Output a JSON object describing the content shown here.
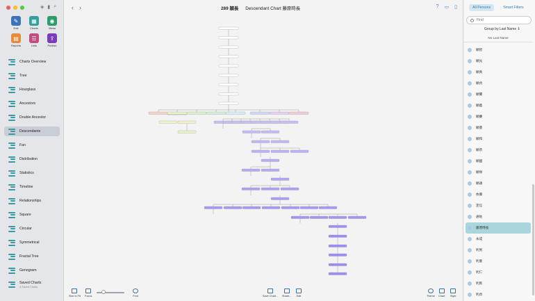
{
  "quick_actions": [
    {
      "label": "Edit",
      "color": "#3b73b9",
      "icon": "pencil-icon",
      "glyph": "✎"
    },
    {
      "label": "Charts",
      "color": "#33a09b",
      "icon": "charts-icon",
      "glyph": "▦"
    },
    {
      "label": "Views",
      "color": "#2a9d6a",
      "icon": "eye-icon",
      "glyph": "◉"
    },
    {
      "label": "Reports",
      "color": "#e68a3a",
      "icon": "reports-icon",
      "glyph": "▤"
    },
    {
      "label": "Lists",
      "color": "#c24c7c",
      "icon": "lists-icon",
      "glyph": "☰"
    },
    {
      "label": "Publish",
      "color": "#7a3fb8",
      "icon": "publish-icon",
      "glyph": "⇪"
    }
  ],
  "nav": [
    {
      "label": "Charts Overview"
    },
    {
      "label": "Tree"
    },
    {
      "label": "Hourglass"
    },
    {
      "label": "Ancestors"
    },
    {
      "label": "Double Ancestor"
    },
    {
      "label": "Descendants",
      "selected": true
    },
    {
      "label": "Fan"
    },
    {
      "label": "Distribution"
    },
    {
      "label": "Statistics"
    },
    {
      "label": "Timeline"
    },
    {
      "label": "Relationships"
    },
    {
      "label": "Square"
    },
    {
      "label": "Circular"
    },
    {
      "label": "Symmetrical"
    },
    {
      "label": "Fractal Tree"
    },
    {
      "label": "Genogram"
    },
    {
      "label": "Saved Charts",
      "sub": "4 Saved Charts"
    }
  ],
  "header": {
    "count": "289 穎長",
    "chart_title": "Descendant Chart 藤原時長"
  },
  "bottom_bar": {
    "size_to_fit": "Size to Fit",
    "focus": "Focus",
    "find": "Find",
    "save_chart": "Save Chart...",
    "share": "Share...",
    "edit": "Edit",
    "theme": "Theme",
    "chart": "Chart",
    "style": "Style"
  },
  "panel": {
    "tabs": [
      "All Persons",
      "Smart Filters"
    ],
    "search_placeholder": "Find",
    "group_by": "Group by Last Name",
    "list_header": "No Last Name",
    "persons": [
      {
        "name": "穎智"
      },
      {
        "name": "穎光"
      },
      {
        "name": "穎真"
      },
      {
        "name": "穎貞"
      },
      {
        "name": "穎實"
      },
      {
        "name": "穎義"
      },
      {
        "name": "穎慶"
      },
      {
        "name": "穎豊"
      },
      {
        "name": "穎和"
      },
      {
        "name": "穎宗"
      },
      {
        "name": "穎國"
      },
      {
        "name": "穎保"
      },
      {
        "name": "穎通"
      },
      {
        "name": "依藤"
      },
      {
        "name": "定信"
      },
      {
        "name": "通佐"
      },
      {
        "name": "藤原時長",
        "selected": true
      },
      {
        "name": "永成"
      },
      {
        "name": "利男"
      },
      {
        "name": "利重"
      },
      {
        "name": "利仁"
      },
      {
        "name": "利民"
      },
      {
        "name": "利貞"
      }
    ]
  }
}
